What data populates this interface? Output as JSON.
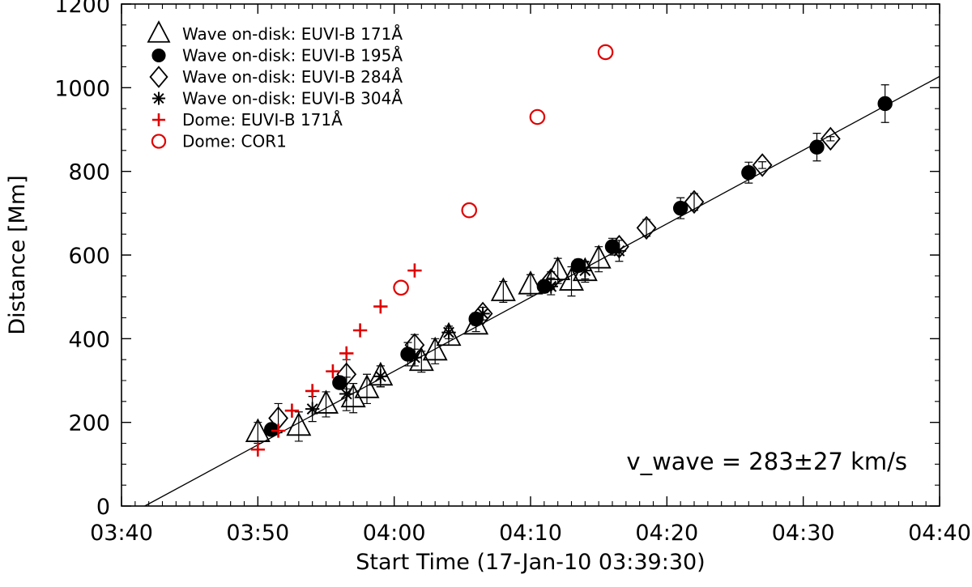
{
  "chart_data": {
    "type": "scatter",
    "title": "",
    "xlabel": "Start Time (17-Jan-10 03:39:30)",
    "ylabel": "Distance [Mm]",
    "xlim": [
      "03:40",
      "04:40"
    ],
    "ylim": [
      0,
      1200
    ],
    "x_ticks": [
      "03:40",
      "03:50",
      "04:00",
      "04:10",
      "04:20",
      "04:30",
      "04:40"
    ],
    "y_ticks": [
      "0",
      "200",
      "400",
      "600",
      "800",
      "1000",
      "1200"
    ],
    "grid": false,
    "legend_position": "top-left",
    "annotation": "v_wave = 283±27 km/s",
    "fit_line": {
      "x": [
        "03:40",
        "04:40"
      ],
      "y": [
        -30,
        1027
      ],
      "color": "#000000"
    },
    "series": [
      {
        "name": "Wave on-disk: EUVI-B 171Å",
        "marker": "triangle-open",
        "color": "#000000",
        "points": [
          {
            "x": "03:50",
            "y": 175,
            "err": 25
          },
          {
            "x": "03:53",
            "y": 190,
            "err": 35
          },
          {
            "x": "03:55",
            "y": 243,
            "err": 30
          },
          {
            "x": "03:57",
            "y": 258,
            "err": 35
          },
          {
            "x": "03:58",
            "y": 280,
            "err": 35
          },
          {
            "x": "03:59",
            "y": 310,
            "err": 25
          },
          {
            "x": "04:02",
            "y": 345,
            "err": 25
          },
          {
            "x": "04:03",
            "y": 370,
            "err": 30
          },
          {
            "x": "04:04",
            "y": 405,
            "err": 20
          },
          {
            "x": "04:06",
            "y": 432,
            "err": 15
          },
          {
            "x": "04:08",
            "y": 512,
            "err": 25
          },
          {
            "x": "04:10",
            "y": 528,
            "err": 25
          },
          {
            "x": "04:12",
            "y": 562,
            "err": 30
          },
          {
            "x": "04:13",
            "y": 537,
            "err": 35
          },
          {
            "x": "04:14",
            "y": 560,
            "err": 25
          },
          {
            "x": "04:15",
            "y": 590,
            "err": 30
          }
        ]
      },
      {
        "name": "Wave on-disk: EUVI-B 195Å",
        "marker": "circle-filled",
        "color": "#000000",
        "points": [
          {
            "x": "03:51",
            "y": 183,
            "err": 0
          },
          {
            "x": "03:56",
            "y": 295,
            "err": 0
          },
          {
            "x": "04:01",
            "y": 363,
            "err": 28
          },
          {
            "x": "04:06",
            "y": 447,
            "err": 15
          },
          {
            "x": "04:11",
            "y": 525,
            "err": 15
          },
          {
            "x": "04:13:30",
            "y": 575,
            "err": 15
          },
          {
            "x": "04:16",
            "y": 620,
            "err": 20
          },
          {
            "x": "04:21",
            "y": 712,
            "err": 25
          },
          {
            "x": "04:26",
            "y": 797,
            "err": 25
          },
          {
            "x": "04:31",
            "y": 858,
            "err": 33
          },
          {
            "x": "04:36",
            "y": 962,
            "err": 45
          }
        ]
      },
      {
        "name": "Wave on-disk: EUVI-B 284Å",
        "marker": "diamond-open",
        "color": "#000000",
        "points": [
          {
            "x": "03:51:30",
            "y": 210,
            "err": 35
          },
          {
            "x": "03:56:30",
            "y": 315,
            "err": 35
          },
          {
            "x": "04:01:30",
            "y": 385,
            "err": 25
          },
          {
            "x": "04:06:30",
            "y": 460,
            "err": 15
          },
          {
            "x": "04:11:30",
            "y": 540,
            "err": 20
          },
          {
            "x": "04:16:30",
            "y": 620,
            "err": 15
          },
          {
            "x": "04:18:30",
            "y": 665,
            "err": 20
          },
          {
            "x": "04:22",
            "y": 727,
            "err": 20
          },
          {
            "x": "04:27",
            "y": 815,
            "err": 8
          },
          {
            "x": "04:32",
            "y": 878,
            "err": 5
          }
        ]
      },
      {
        "name": "Wave on-disk: EUVI-B 304Å",
        "marker": "asterisk",
        "color": "#000000",
        "points": [
          {
            "x": "03:54",
            "y": 232,
            "err": 30
          },
          {
            "x": "03:56:30",
            "y": 268,
            "err": 40
          },
          {
            "x": "03:59",
            "y": 310,
            "err": 25
          },
          {
            "x": "04:01:30",
            "y": 355,
            "err": 20
          },
          {
            "x": "04:04",
            "y": 415,
            "err": 15
          },
          {
            "x": "04:06:30",
            "y": 460,
            "err": 15
          },
          {
            "x": "04:11:30",
            "y": 525,
            "err": 20
          },
          {
            "x": "04:14",
            "y": 563,
            "err": 20
          },
          {
            "x": "04:16:30",
            "y": 610,
            "err": 25
          }
        ]
      },
      {
        "name": "Dome: EUVI-B 171Å",
        "marker": "plus",
        "color": "#e00000",
        "points": [
          {
            "x": "03:50",
            "y": 135
          },
          {
            "x": "03:51:30",
            "y": 180
          },
          {
            "x": "03:52:30",
            "y": 228
          },
          {
            "x": "03:54",
            "y": 275
          },
          {
            "x": "03:55:30",
            "y": 322
          },
          {
            "x": "03:56:30",
            "y": 365
          },
          {
            "x": "03:57:30",
            "y": 420
          },
          {
            "x": "03:59",
            "y": 477
          },
          {
            "x": "04:01:30",
            "y": 563
          }
        ]
      },
      {
        "name": "Dome: COR1",
        "marker": "circle-open",
        "color": "#e00000",
        "points": [
          {
            "x": "04:00:30",
            "y": 522
          },
          {
            "x": "04:05:30",
            "y": 707
          },
          {
            "x": "04:10:30",
            "y": 930
          },
          {
            "x": "04:15:30",
            "y": 1085
          }
        ]
      }
    ]
  }
}
